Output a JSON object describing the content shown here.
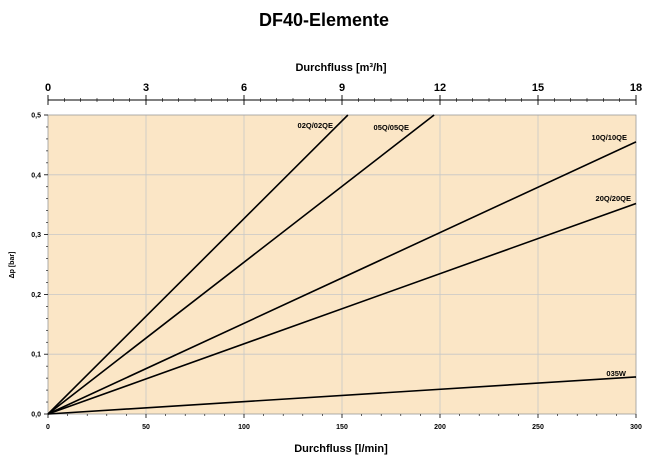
{
  "chart_data": {
    "type": "line",
    "title": "DF40-Elemente",
    "xlabel": "Durchfluss [l/min]",
    "x2label": "Durchfluss [m³/h]",
    "ylabel": "Δp [bar]",
    "xlim": [
      0,
      300
    ],
    "x2lim": [
      0,
      18
    ],
    "ylim": [
      0,
      0.5
    ],
    "x_ticks": [
      "0",
      "50",
      "100",
      "150",
      "200",
      "250",
      "300"
    ],
    "x2_ticks": [
      "0",
      "3",
      "6",
      "9",
      "12",
      "15",
      "18"
    ],
    "y_ticks": [
      "0,0",
      "0,1",
      "0,2",
      "0,3",
      "0,4",
      "0,5"
    ],
    "grid": true,
    "plot_background": "#fbe6c6",
    "line_color": "#000000",
    "series": [
      {
        "name": "02Q/02QE",
        "x": [
          0,
          153
        ],
        "y": [
          0,
          0.5
        ]
      },
      {
        "name": "05Q/05QE",
        "x": [
          0,
          197
        ],
        "y": [
          0,
          0.5
        ]
      },
      {
        "name": "10Q/10QE",
        "x": [
          0,
          300
        ],
        "y": [
          0,
          0.455
        ]
      },
      {
        "name": "20Q/20QE",
        "x": [
          0,
          300
        ],
        "y": [
          0,
          0.352
        ]
      },
      {
        "name": "035W",
        "x": [
          0,
          300
        ],
        "y": [
          0,
          0.062
        ]
      }
    ]
  }
}
